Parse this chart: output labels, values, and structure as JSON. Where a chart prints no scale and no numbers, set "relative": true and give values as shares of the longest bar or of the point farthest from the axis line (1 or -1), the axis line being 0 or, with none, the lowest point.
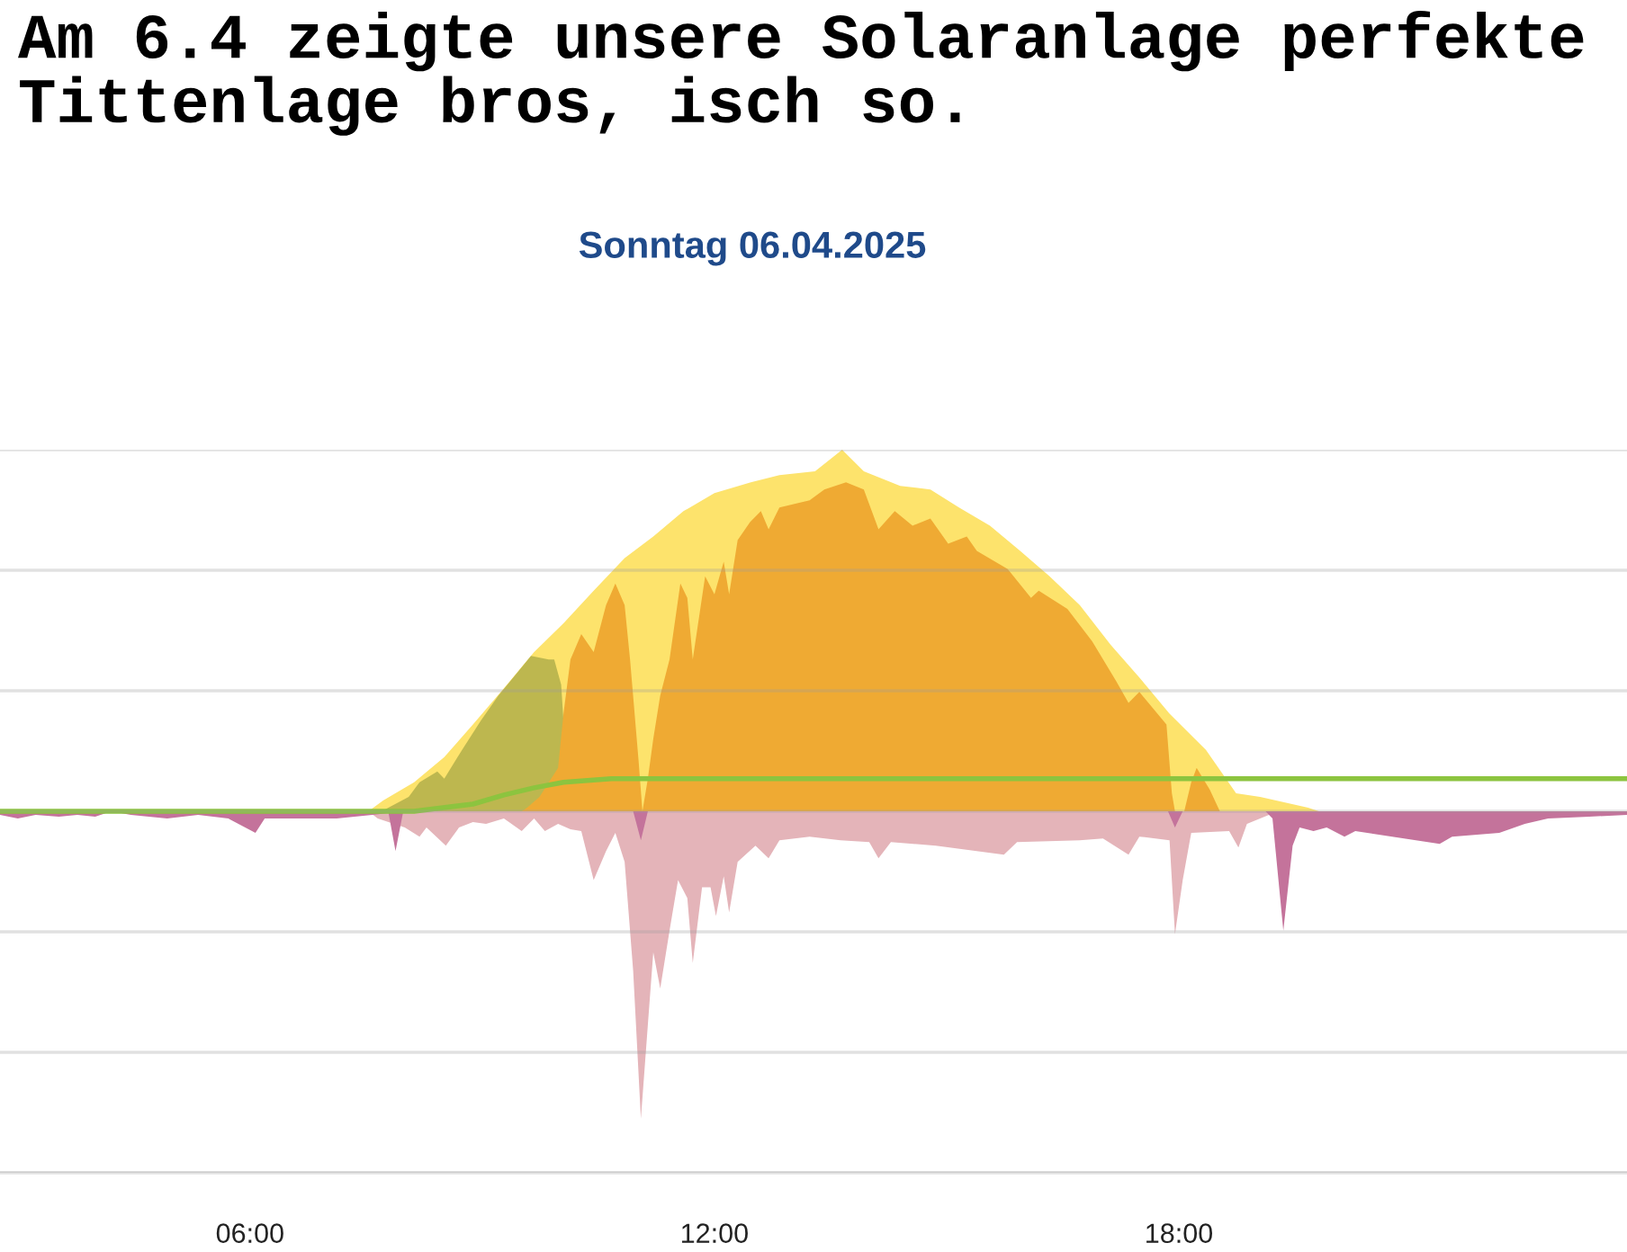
{
  "chart_data": {
    "type": "area",
    "title": "Am 6.4 zeigte unsere Solaranlage perfekte Tittenlage bros, isch so.",
    "subtitle": "Sonntag 06.04.2025",
    "relative": true,
    "grid": "y",
    "tick_labels": "x",
    "xlim": [
      2.77,
      23.79
    ],
    "xticks": [
      {
        "value": 6,
        "label": "06:00"
      },
      {
        "value": 12,
        "label": "12:00"
      },
      {
        "value": 18,
        "label": "18:00"
      }
    ],
    "series": [
      {
        "color": "#fde36c",
        "x": [
          2.77,
          7.53,
          7.72,
          8.12,
          8.51,
          8.88,
          9.28,
          9.67,
          10.05,
          10.44,
          10.84,
          11.21,
          11.6,
          12.0,
          12.47,
          12.84,
          13.3,
          13.65,
          13.93,
          14.4,
          14.79,
          15.16,
          15.56,
          15.95,
          16.33,
          16.72,
          17.12,
          17.49,
          17.88,
          18.35,
          18.74,
          19.05,
          19.67,
          19.81,
          23.79
        ],
        "values": [
          0,
          0,
          0.03,
          0.08,
          0.15,
          0.24,
          0.34,
          0.44,
          0.52,
          0.61,
          0.7,
          0.76,
          0.83,
          0.88,
          0.91,
          0.93,
          0.94,
          1.0,
          0.94,
          0.9,
          0.89,
          0.84,
          0.79,
          0.72,
          0.65,
          0.57,
          0.46,
          0.37,
          0.27,
          0.17,
          0.05,
          0.04,
          0.01,
          0,
          0
        ]
      },
      {
        "color": "#bdb74f",
        "x": [
          2.77,
          7.7,
          8.05,
          8.19,
          8.42,
          8.51,
          8.74,
          8.98,
          9.21,
          9.44,
          9.63,
          9.86,
          9.93,
          10.02,
          10.05,
          10.09,
          10.16,
          23.79
        ],
        "values": [
          0,
          0,
          0.04,
          0.08,
          0.11,
          0.09,
          0.17,
          0.25,
          0.32,
          0.38,
          0.43,
          0.42,
          0.42,
          0.35,
          0.25,
          null,
          0,
          0
        ]
      },
      {
        "color": "#efaa33",
        "x": [
          2.77,
          9.51,
          9.58,
          9.74,
          9.98,
          10.05,
          10.14,
          10.28,
          10.44,
          10.6,
          10.72,
          10.84,
          10.91,
          11.02,
          11.07,
          11.14,
          11.21,
          11.3,
          11.42,
          11.56,
          11.65,
          11.72,
          11.88,
          12.0,
          12.12,
          12.19,
          12.3,
          12.46,
          12.6,
          12.7,
          12.84,
          13.23,
          13.42,
          13.7,
          13.93,
          14.12,
          14.33,
          14.56,
          14.79,
          15.02,
          15.26,
          15.39,
          15.79,
          16.09,
          16.19,
          16.56,
          16.88,
          17.19,
          17.35,
          17.49,
          17.84,
          17.91,
          17.95,
          18.07,
          18.16,
          18.23,
          18.4,
          18.53,
          23.79
        ],
        "values": [
          0,
          0,
          0.01,
          0.04,
          0.12,
          0.27,
          0.42,
          0.49,
          0.44,
          0.57,
          0.63,
          0.57,
          0.42,
          0.14,
          0,
          0.09,
          0.2,
          0.32,
          0.42,
          0.63,
          0.59,
          0.42,
          0.65,
          0.6,
          0.69,
          0.6,
          0.75,
          0.8,
          0.83,
          0.78,
          0.84,
          0.86,
          0.89,
          0.91,
          0.89,
          0.78,
          0.83,
          0.79,
          0.81,
          0.74,
          0.76,
          0.72,
          0.67,
          0.59,
          0.61,
          0.56,
          0.47,
          0.36,
          0.3,
          0.33,
          0.24,
          0.05,
          0,
          0,
          0.08,
          0.12,
          0.06,
          0,
          0
        ]
      },
      {
        "color": "#e4b4b9",
        "x": [
          2.77,
          7.53,
          7.65,
          8.0,
          8.19,
          8.28,
          8.53,
          8.7,
          8.88,
          9.05,
          9.28,
          9.51,
          9.67,
          9.81,
          9.98,
          10.14,
          10.28,
          10.44,
          10.6,
          10.72,
          10.84,
          10.95,
          11.05,
          11.14,
          11.21,
          11.3,
          11.42,
          11.53,
          11.65,
          11.72,
          11.84,
          11.95,
          12.02,
          12.12,
          12.19,
          12.3,
          12.53,
          12.7,
          12.84,
          13.23,
          13.63,
          14.0,
          14.12,
          14.28,
          14.86,
          15.74,
          15.91,
          16.72,
          17.02,
          17.35,
          17.49,
          17.88,
          17.95,
          18.05,
          18.16,
          18.65,
          18.77,
          18.88,
          19.05,
          19.28,
          23.79
        ],
        "values": [
          0,
          0,
          -0.02,
          -0.045,
          -0.07,
          -0.045,
          -0.095,
          -0.045,
          -0.03,
          -0.035,
          -0.02,
          -0.055,
          -0.02,
          -0.055,
          -0.035,
          -0.05,
          -0.055,
          -0.19,
          -0.11,
          -0.06,
          -0.14,
          -0.44,
          -0.85,
          -0.59,
          -0.39,
          -0.49,
          -0.33,
          -0.19,
          -0.24,
          -0.42,
          -0.21,
          -0.21,
          -0.29,
          -0.18,
          -0.28,
          -0.14,
          -0.095,
          -0.13,
          -0.08,
          -0.07,
          -0.08,
          -0.085,
          -0.13,
          -0.085,
          -0.095,
          -0.12,
          -0.085,
          -0.08,
          -0.075,
          -0.12,
          -0.07,
          -0.08,
          -0.34,
          -0.19,
          -0.06,
          -0.055,
          -0.1,
          -0.035,
          -0.02,
          0,
          0
        ]
      },
      {
        "color": "#c4739b",
        "x": [
          2.77,
          3.0,
          3.23,
          3.53,
          3.77,
          4.0,
          4.21,
          4.46,
          4.93,
          5.33,
          5.72,
          6.07,
          6.19,
          6.65,
          7.12,
          7.58,
          7.79,
          7.88,
          7.98,
          10.95,
          11.05,
          11.14,
          17.86,
          17.95,
          18.05,
          19.12,
          19.21,
          19.35,
          19.47,
          19.56,
          19.74,
          19.91,
          20.14,
          20.28,
          20.91,
          21.37,
          21.53,
          22.14,
          22.47,
          22.77,
          23.3,
          23.79
        ],
        "values": [
          -0.01,
          -0.02,
          -0.01,
          -0.015,
          -0.01,
          -0.015,
          0,
          -0.01,
          -0.02,
          -0.01,
          -0.02,
          -0.06,
          -0.02,
          -0.02,
          -0.02,
          -0.01,
          -0.005,
          -0.11,
          0,
          0,
          -0.08,
          0,
          0,
          -0.045,
          0,
          0,
          -0.02,
          -0.33,
          -0.095,
          -0.045,
          -0.055,
          -0.045,
          -0.07,
          -0.055,
          -0.075,
          -0.09,
          -0.07,
          -0.06,
          -0.035,
          -0.02,
          -0.015,
          -0.01
        ]
      },
      {
        "type": "line",
        "color": "#8cc43f",
        "x": [
          2.77,
          8.12,
          8.88,
          9.28,
          9.67,
          10.05,
          10.67,
          23.79
        ],
        "values": [
          0,
          0,
          0.02,
          0.045,
          0.065,
          0.08,
          0.09,
          0.09
        ]
      }
    ]
  }
}
